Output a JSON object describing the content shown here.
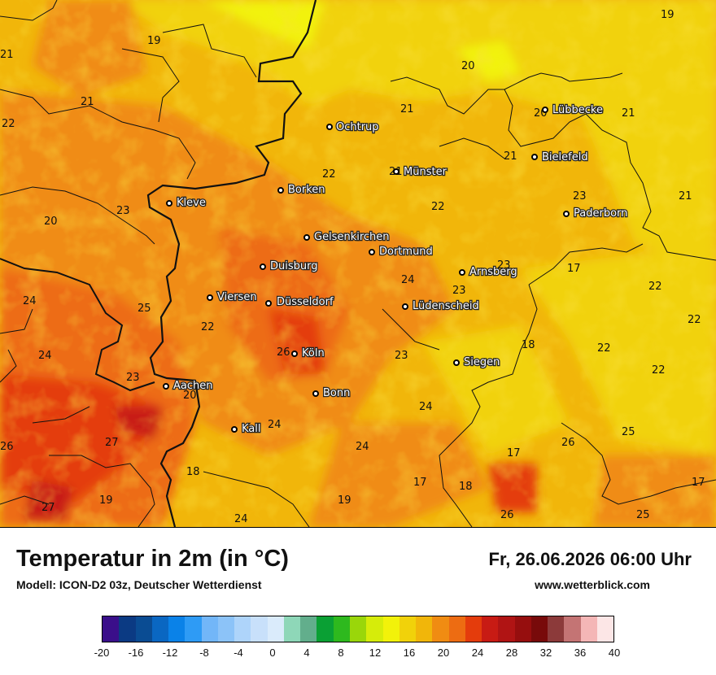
{
  "title": "Temperatur in 2m (in °C)",
  "subtitle": "Modell: ICON-D2 03z, Deutscher Wetterdienst",
  "datetime": "Fr, 26.06.2026 06:00 Uhr",
  "website": "www.wetterblick.com",
  "legend": {
    "colors": [
      "#3a0f8a",
      "#0b3a83",
      "#0a4c93",
      "#0a67c2",
      "#0a82e8",
      "#2e9bf5",
      "#72b6f8",
      "#8cc3f8",
      "#aed4fa",
      "#c8e0fa",
      "#daebfb",
      "#8ed7b8",
      "#62ae8c",
      "#0aa034",
      "#2eb91e",
      "#9ad60a",
      "#d6ec0a",
      "#f2f20a",
      "#f1d20a",
      "#f1b60a",
      "#f08c12",
      "#ed6c12",
      "#e43c0c",
      "#c81b14",
      "#b01414",
      "#960e0e",
      "#780a0a",
      "#8c3a3a",
      "#c47474",
      "#f4b6b6",
      "#fce6e6"
    ],
    "ticks": [
      "-20",
      "-16",
      "-12",
      "-8",
      "-4",
      "0",
      "4",
      "8",
      "12",
      "16",
      "20",
      "24",
      "28",
      "32",
      "36",
      "40"
    ]
  },
  "cities": [
    {
      "name": "Ochtrup"
    },
    {
      "name": "Lübbecke"
    },
    {
      "name": "Bielefeld"
    },
    {
      "name": "Münster"
    },
    {
      "name": "Borken"
    },
    {
      "name": "Kleve"
    },
    {
      "name": "Paderborn"
    },
    {
      "name": "Gelsenkirchen"
    },
    {
      "name": "Dortmund"
    },
    {
      "name": "Duisburg"
    },
    {
      "name": "Arnsberg"
    },
    {
      "name": "Viersen"
    },
    {
      "name": "Düsseldorf"
    },
    {
      "name": "Lüdenscheid"
    },
    {
      "name": "Köln"
    },
    {
      "name": "Siegen"
    },
    {
      "name": "Aachen"
    },
    {
      "name": "Bonn"
    },
    {
      "name": "Kall"
    }
  ],
  "temperatures": [
    "19",
    "19",
    "21",
    "20",
    "21",
    "22",
    "21",
    "20",
    "21",
    "21",
    "22",
    "21",
    "22",
    "23",
    "20",
    "23",
    "21",
    "22",
    "23",
    "17",
    "24",
    "24",
    "25",
    "23",
    "22",
    "22",
    "24",
    "22",
    "26",
    "23",
    "18",
    "22",
    "23",
    "20",
    "26",
    "24",
    "27",
    "24",
    "25",
    "24",
    "26",
    "17",
    "18",
    "18",
    "19",
    "17",
    "17",
    "27",
    "19",
    "24",
    "26",
    "25"
  ]
}
